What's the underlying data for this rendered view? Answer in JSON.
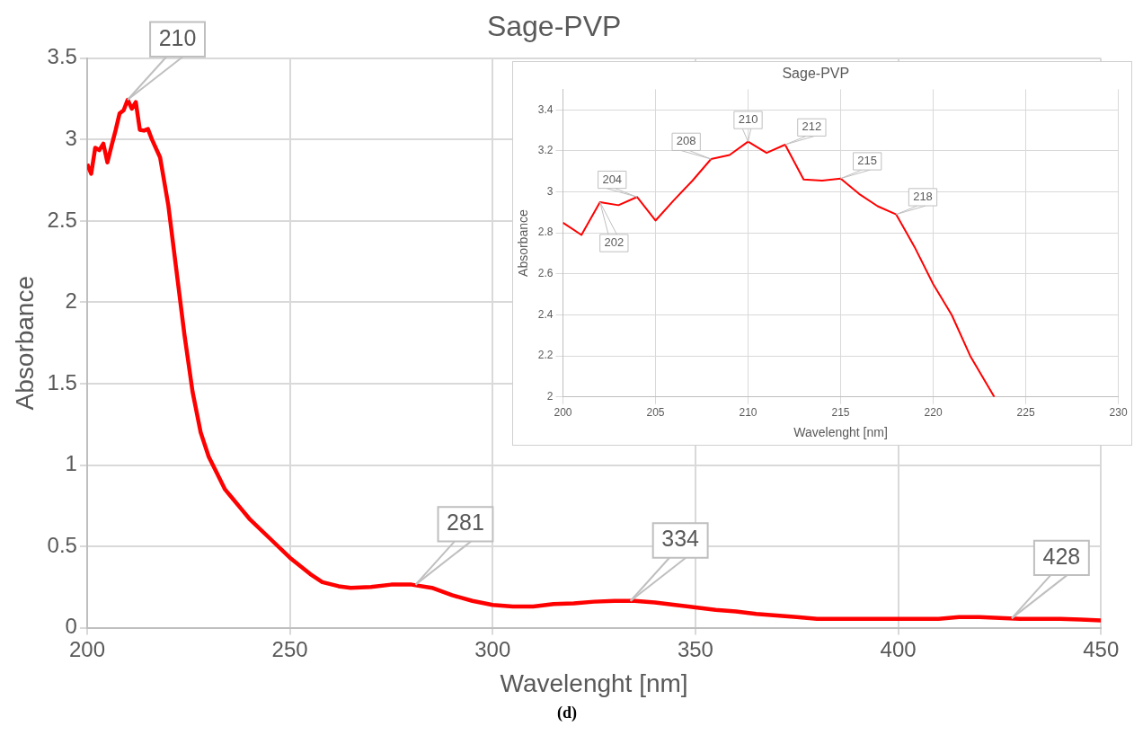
{
  "chart_data": [
    {
      "type": "line",
      "title": "Sage-PVP",
      "xlabel": "Wavelenght [nm]",
      "ylabel": "Absorbance",
      "xlim": [
        200,
        450
      ],
      "xticks": [
        200,
        250,
        300,
        350,
        400,
        450
      ],
      "ylim": [
        0,
        3.5
      ],
      "yticks": [
        0,
        0.5,
        1,
        1.5,
        2,
        2.5,
        3,
        3.5
      ],
      "grid": true,
      "marker": "none",
      "series": [
        {
          "color": "#ff0000",
          "x": [
            200,
            201,
            202,
            203,
            204,
            205,
            206,
            207,
            208,
            209,
            210,
            211,
            212,
            213,
            214,
            215,
            216,
            218,
            220,
            222,
            224,
            226,
            228,
            230,
            232,
            234,
            236,
            238,
            240,
            245,
            250,
            255,
            258,
            262,
            265,
            270,
            275,
            280,
            285,
            290,
            295,
            300,
            305,
            310,
            315,
            320,
            325,
            330,
            335,
            340,
            345,
            350,
            355,
            360,
            365,
            370,
            375,
            380,
            390,
            400,
            410,
            415,
            420,
            425,
            430,
            440,
            445,
            450
          ],
          "values": [
            2.85,
            2.79,
            2.95,
            2.935,
            2.975,
            2.86,
            2.96,
            3.055,
            3.16,
            3.18,
            3.245,
            3.19,
            3.23,
            3.06,
            3.055,
            3.065,
            3.0,
            2.89,
            2.6,
            2.2,
            1.8,
            1.45,
            1.2,
            1.05,
            0.95,
            0.85,
            0.79,
            0.73,
            0.67,
            0.55,
            0.43,
            0.33,
            0.28,
            0.255,
            0.245,
            0.25,
            0.265,
            0.265,
            0.245,
            0.2,
            0.165,
            0.14,
            0.13,
            0.13,
            0.145,
            0.15,
            0.16,
            0.165,
            0.165,
            0.155,
            0.14,
            0.125,
            0.11,
            0.1,
            0.085,
            0.075,
            0.065,
            0.055,
            0.055,
            0.055,
            0.055,
            0.065,
            0.065,
            0.06,
            0.055,
            0.055,
            0.05,
            0.045
          ]
        }
      ],
      "annotations": [
        {
          "text": "210",
          "x": 210,
          "y": 3.245
        },
        {
          "text": "281",
          "x": 281,
          "y": 0.265
        },
        {
          "text": "334",
          "x": 334,
          "y": 0.165
        },
        {
          "text": "428",
          "x": 428,
          "y": 0.058
        },
        "(d)"
      ]
    },
    {
      "type": "line",
      "title": "Sage-PVP",
      "xlabel": "Wavelenght [nm]",
      "ylabel": "Absorbance",
      "xlim": [
        200,
        230
      ],
      "xticks": [
        200,
        205,
        210,
        215,
        220,
        225,
        230
      ],
      "ylim": [
        2,
        3.5
      ],
      "yticks": [
        2,
        2.2,
        2.4,
        2.6,
        2.8,
        3,
        3.2,
        3.4
      ],
      "grid": true,
      "marker": "none",
      "series": [
        {
          "color": "#ff0000",
          "x": [
            200,
            201,
            202,
            203,
            204,
            205,
            206,
            207,
            208,
            209,
            210,
            211,
            212,
            213,
            214,
            215,
            216,
            217,
            218,
            219,
            220,
            221,
            222,
            223.3
          ],
          "values": [
            2.85,
            2.79,
            2.95,
            2.935,
            2.975,
            2.86,
            2.96,
            3.055,
            3.16,
            3.18,
            3.245,
            3.19,
            3.23,
            3.06,
            3.055,
            3.065,
            2.99,
            2.93,
            2.89,
            2.73,
            2.55,
            2.4,
            2.2,
            2.0
          ]
        }
      ],
      "annotations": [
        {
          "text": "202",
          "x": 202,
          "y": 2.95
        },
        {
          "text": "204",
          "x": 204,
          "y": 2.975
        },
        {
          "text": "208",
          "x": 208,
          "y": 3.16
        },
        {
          "text": "210",
          "x": 210,
          "y": 3.245
        },
        {
          "text": "212",
          "x": 212,
          "y": 3.23
        },
        {
          "text": "215",
          "x": 215,
          "y": 3.065
        },
        {
          "text": "218",
          "x": 218,
          "y": 2.89
        }
      ]
    }
  ]
}
